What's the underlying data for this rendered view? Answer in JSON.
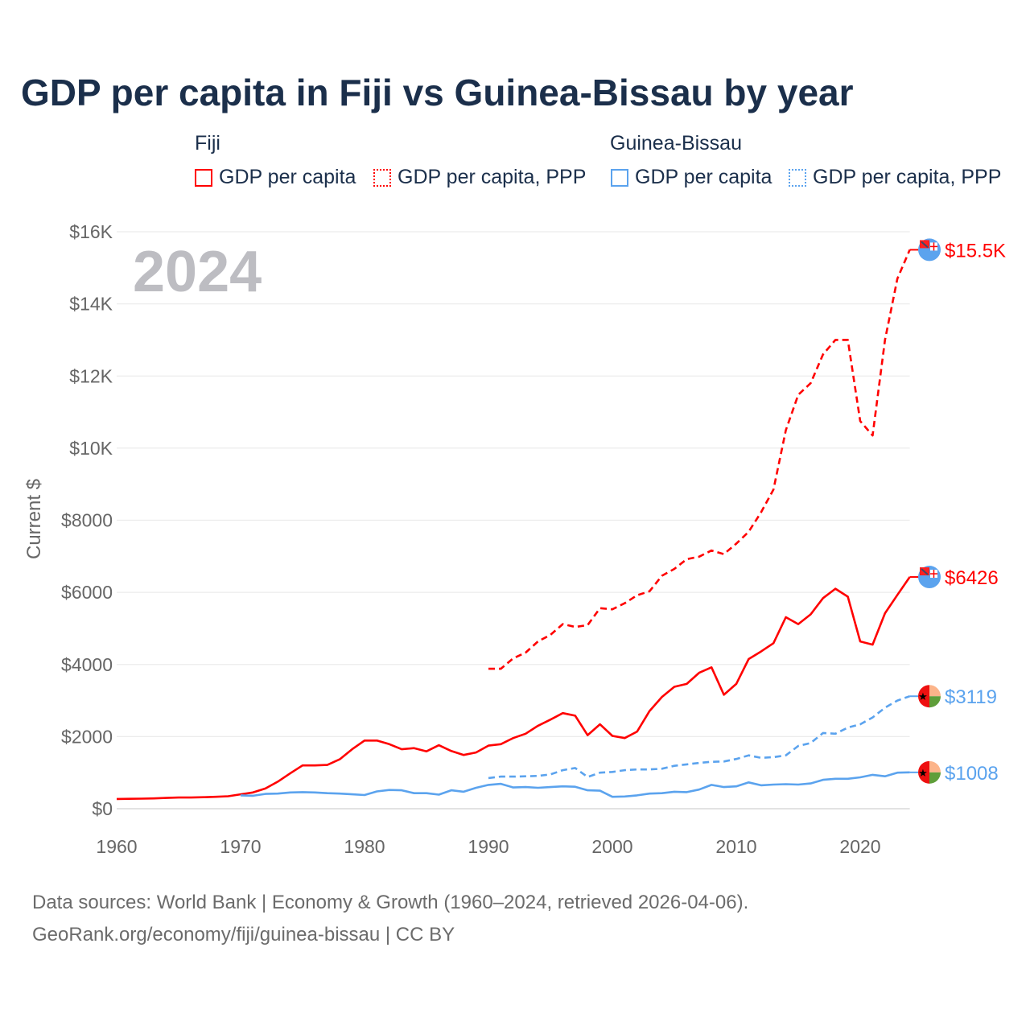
{
  "chart_data": {
    "type": "line",
    "title": "GDP per capita in Fiji vs Guinea-Bissau by year",
    "year_label": "2024",
    "ylabel": "Current $",
    "xlabel": "",
    "xlim": [
      1960,
      2024
    ],
    "ylim": [
      0,
      16000
    ],
    "x_ticks": [
      "1960",
      "1970",
      "1980",
      "1990",
      "2000",
      "2010",
      "2020"
    ],
    "y_ticks": [
      {
        "v": 0,
        "label": "$0"
      },
      {
        "v": 2000,
        "label": "$2000"
      },
      {
        "v": 4000,
        "label": "$4000"
      },
      {
        "v": 6000,
        "label": "$6000"
      },
      {
        "v": 8000,
        "label": "$8000"
      },
      {
        "v": 10000,
        "label": "$10K"
      },
      {
        "v": 12000,
        "label": "$12K"
      },
      {
        "v": 14000,
        "label": "$14K"
      },
      {
        "v": 16000,
        "label": "$16K"
      }
    ],
    "grid": true,
    "legend": {
      "placement": "top",
      "groups": [
        {
          "name": "Fiji",
          "items": [
            "GDP per capita",
            "GDP per capita, PPP"
          ]
        },
        {
          "name": "Guinea-Bissau",
          "items": [
            "GDP per capita",
            "GDP per capita, PPP"
          ]
        }
      ]
    },
    "series": [
      {
        "name": "Fiji GDP per capita",
        "color": "#ff0000",
        "dash": false,
        "start": 1960,
        "end_label": "$6426",
        "values": [
          270,
          275,
          280,
          285,
          300,
          310,
          310,
          320,
          330,
          345,
          400,
          450,
          560,
          750,
          980,
          1200,
          1200,
          1215,
          1370,
          1650,
          1890,
          1890,
          1790,
          1650,
          1680,
          1590,
          1760,
          1600,
          1490,
          1560,
          1750,
          1790,
          1960,
          2080,
          2300,
          2470,
          2650,
          2580,
          2040,
          2340,
          2020,
          1960,
          2140,
          2710,
          3100,
          3380,
          3460,
          3770,
          3920,
          3160,
          3460,
          4150,
          4360,
          4590,
          5310,
          5120,
          5390,
          5840,
          6100,
          5880,
          4640,
          4550,
          5420,
          5930,
          6426
        ]
      },
      {
        "name": "Fiji GDP per capita, PPP",
        "color": "#ff0000",
        "dash": true,
        "start": 1990,
        "end_label": "$15.5K",
        "values": [
          3880,
          3880,
          4170,
          4330,
          4640,
          4820,
          5120,
          5040,
          5090,
          5560,
          5530,
          5700,
          5920,
          6030,
          6460,
          6650,
          6920,
          6990,
          7160,
          7060,
          7350,
          7680,
          8220,
          8850,
          10500,
          11480,
          11800,
          12600,
          13000,
          13000,
          10750,
          10350,
          13000,
          14700,
          15500
        ]
      },
      {
        "name": "Guinea-Bissau GDP per capita",
        "color": "#5ba3ee",
        "dash": false,
        "start": 1970,
        "end_label": "$1008",
        "values": [
          370,
          360,
          410,
          420,
          450,
          460,
          450,
          430,
          420,
          400,
          380,
          480,
          520,
          510,
          430,
          430,
          390,
          510,
          470,
          580,
          660,
          690,
          590,
          600,
          580,
          600,
          620,
          610,
          510,
          500,
          330,
          340,
          370,
          420,
          430,
          470,
          460,
          530,
          660,
          600,
          620,
          730,
          650,
          670,
          680,
          670,
          700,
          800,
          830,
          830,
          870,
          940,
          900,
          1000,
          1008
        ]
      },
      {
        "name": "Guinea-Bissau GDP per capita, PPP",
        "color": "#5ba3ee",
        "dash": true,
        "start": 1990,
        "end_label": "$3119",
        "values": [
          850,
          890,
          890,
          900,
          910,
          950,
          1070,
          1130,
          880,
          1000,
          1020,
          1070,
          1090,
          1090,
          1110,
          1190,
          1230,
          1270,
          1300,
          1310,
          1380,
          1480,
          1410,
          1430,
          1480,
          1740,
          1820,
          2100,
          2080,
          2250,
          2340,
          2530,
          2800,
          3000,
          3119
        ]
      }
    ]
  },
  "footer": {
    "line1": "Data sources: World Bank | Economy & Growth (1960–2024, retrieved 2026-04-06).",
    "line2": "GeoRank.org/economy/fiji/guinea-bissau | CC BY"
  }
}
